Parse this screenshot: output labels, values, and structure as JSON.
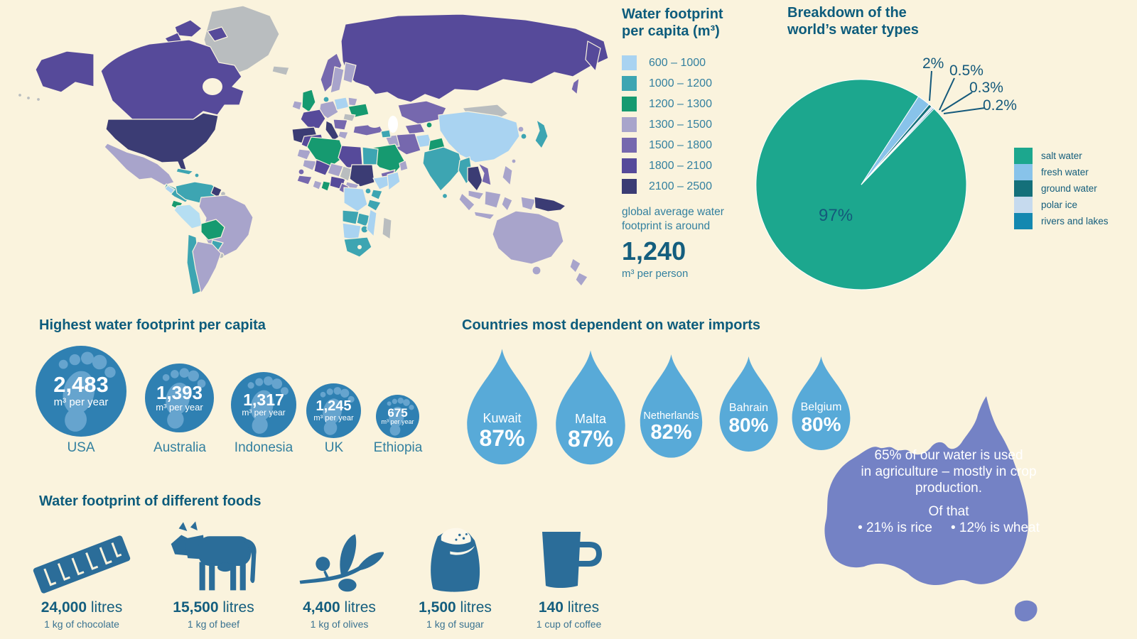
{
  "palette": {
    "background": "#faf3dd",
    "title_text": "#0d5c7c",
    "body_text": "#33809f",
    "dark_value_text": "#145e7e",
    "circle_blue": "#2f80b2",
    "foot_light_blue": "#79b0d8",
    "drop_blue": "#58aad8",
    "australia_purple": "#7482c5",
    "food_icon_blue": "#2b6d99",
    "map_no_data": "#b9bdbf"
  },
  "map_legend": {
    "title_line1": "Water footprint",
    "title_line2": "per capita (m³)",
    "ranges": [
      {
        "label": "600 – 1000",
        "color": "#a9d3f1"
      },
      {
        "label": "1000 – 1200",
        "color": "#3da5b2"
      },
      {
        "label": "1200 – 1300",
        "color": "#169a70"
      },
      {
        "label": "1300 – 1500",
        "color": "#a8a4cb"
      },
      {
        "label": "1500 – 1800",
        "color": "#7668ae"
      },
      {
        "label": "1800 – 2100",
        "color": "#564a9a"
      },
      {
        "label": "2100 – 2500",
        "color": "#3b3c74"
      }
    ],
    "note_line1": "global average water",
    "note_line2": "footprint is around",
    "average_value": "1,240",
    "average_unit": "m³ per person"
  },
  "pie_section": {
    "title_line1": "Breakdown of the",
    "title_line2": "world’s water types"
  },
  "chart_data": [
    {
      "type": "pie",
      "title": "Breakdown of the world’s water types",
      "legend_position": "right",
      "start_angle_deg": 33,
      "slices": [
        {
          "label": "salt water",
          "value": 97,
          "display": "97%",
          "color": "#1ca78e"
        },
        {
          "label": "fresh water",
          "value": 2,
          "display": "2%",
          "color": "#88c3ea"
        },
        {
          "label": "ground water",
          "value": 0.5,
          "display": "0.5%",
          "color": "#14707a"
        },
        {
          "label": "polar ice",
          "value": 0.3,
          "display": "0.3%",
          "color": "#c6daee"
        },
        {
          "label": "rivers and lakes",
          "value": 0.2,
          "display": "0.2%",
          "color": "#1488b0"
        }
      ]
    },
    {
      "type": "bar",
      "title": "Highest water footprint per capita",
      "categories": [
        "USA",
        "Australia",
        "Indonesia",
        "UK",
        "Ethiopia"
      ],
      "values": [
        2483,
        1393,
        1317,
        1245,
        675
      ],
      "unit": "m³ per year"
    },
    {
      "type": "bar",
      "title": "Countries most dependent on water imports",
      "categories": [
        "Kuwait",
        "Malta",
        "Netherlands",
        "Bahrain",
        "Belgium"
      ],
      "values": [
        87,
        87,
        82,
        80,
        80
      ],
      "unit": "%"
    },
    {
      "type": "bar",
      "title": "Water footprint of different foods",
      "categories": [
        "1 kg of chocolate",
        "1 kg of beef",
        "1 kg of olives",
        "1 kg of sugar",
        "1 cup of coffee"
      ],
      "values": [
        24000,
        15500,
        4400,
        1500,
        140
      ],
      "unit": "litres"
    }
  ],
  "footprints": {
    "title": "Highest water footprint per capita",
    "unit": "m³ per year",
    "items": [
      {
        "country": "USA",
        "value": "2,483"
      },
      {
        "country": "Australia",
        "value": "1,393"
      },
      {
        "country": "Indonesia",
        "value": "1,317"
      },
      {
        "country": "UK",
        "value": "1,245"
      },
      {
        "country": "Ethiopia",
        "value": "675"
      }
    ]
  },
  "imports": {
    "title": "Countries most dependent on water imports",
    "items": [
      {
        "country": "Kuwait",
        "pct": "87%"
      },
      {
        "country": "Malta",
        "pct": "87%"
      },
      {
        "country": "Netherlands",
        "pct": "82%"
      },
      {
        "country": "Bahrain",
        "pct": "80%"
      },
      {
        "country": "Belgium",
        "pct": "80%"
      }
    ]
  },
  "australia": {
    "line1": "65% of our water is used",
    "line2": "in agriculture – mostly in crop",
    "line3": "production.",
    "line4": "Of that",
    "bullet1": "• 21% is rice",
    "bullet2": "• 12% is wheat"
  },
  "foods": {
    "title": "Water footprint of different foods",
    "items": [
      {
        "value": "24,000",
        "unit": "litres",
        "desc": "1 kg of chocolate",
        "icon": "chocolate-bar-icon"
      },
      {
        "value": "15,500",
        "unit": "litres",
        "desc": "1 kg of beef",
        "icon": "cow-icon"
      },
      {
        "value": "4,400",
        "unit": "litres",
        "desc": "1 kg of olives",
        "icon": "olive-branch-icon"
      },
      {
        "value": "1,500",
        "unit": "litres",
        "desc": "1 kg of sugar",
        "icon": "sugar-sack-icon"
      },
      {
        "value": "140",
        "unit": "litres",
        "desc": "1 cup of coffee",
        "icon": "coffee-mug-icon"
      }
    ]
  }
}
